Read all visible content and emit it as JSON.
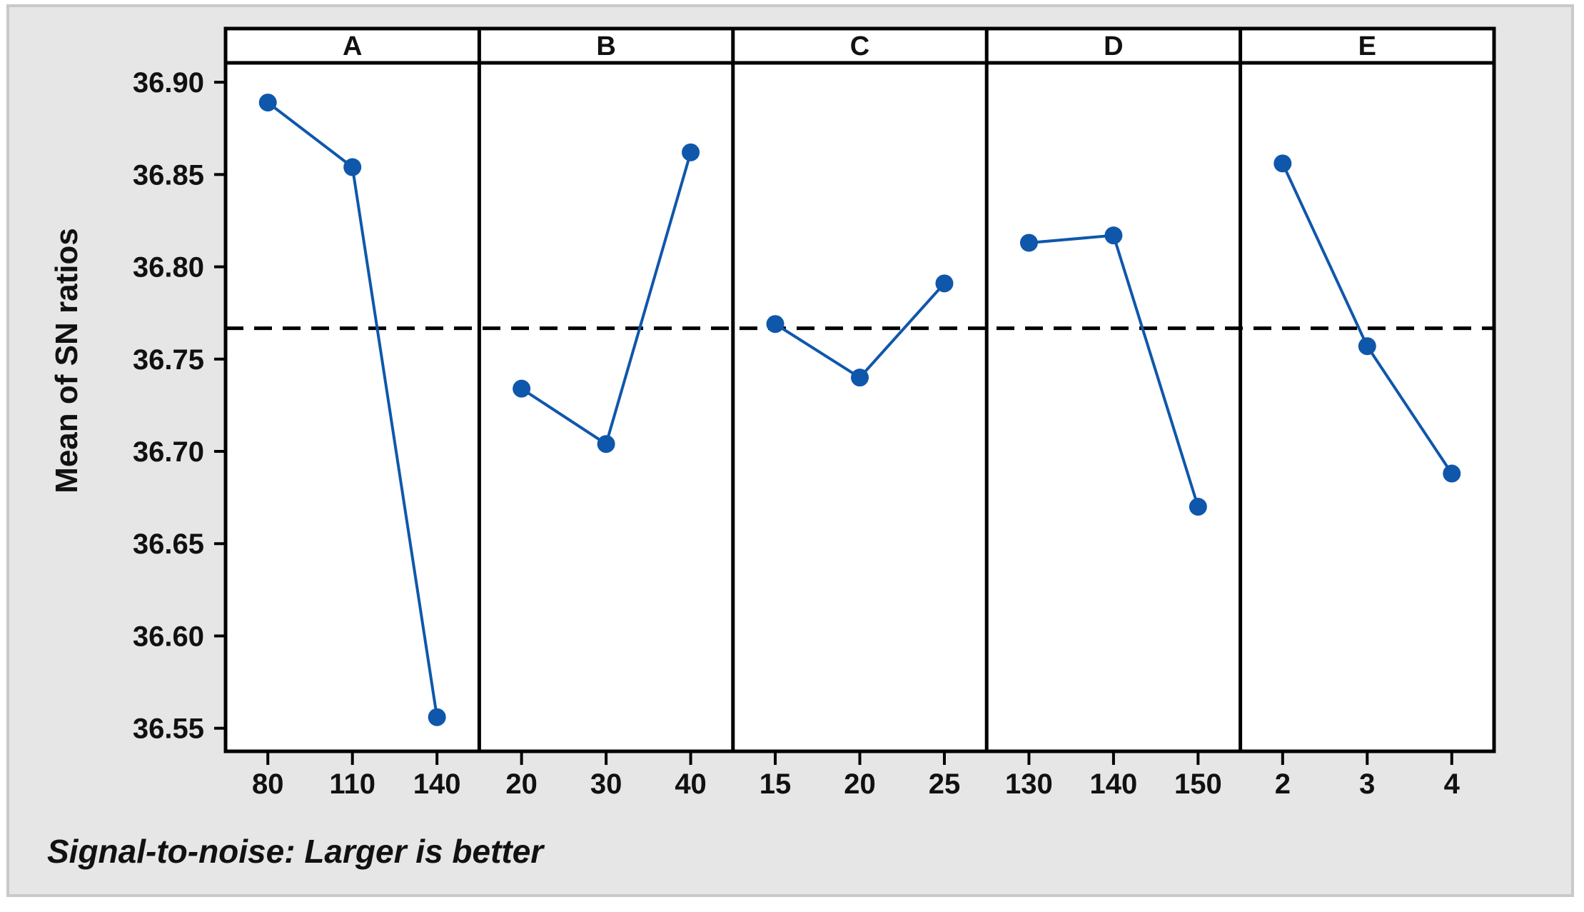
{
  "figure": {
    "canvas_background": "#e6e6e6",
    "canvas_border_color": "#c9c9c9",
    "panel_background": "#ffffff",
    "frame_color": "#000000"
  },
  "chart_data": {
    "type": "line",
    "subtype": "main-effects-plot",
    "title": "",
    "ylabel": "Mean of SN ratios",
    "footer": "Signal-to-noise: Larger is better",
    "point_color": "#0f57ab",
    "line_color": "#0f57ab",
    "reference_line": 36.7667,
    "reference_line_style": "dashed",
    "reference_line_color": "#000000",
    "grid": false,
    "legend": null,
    "ylim": [
      36.5375,
      36.9105
    ],
    "yticks": [
      {
        "value": 36.9,
        "label": "36.90"
      },
      {
        "value": 36.85,
        "label": "36.85"
      },
      {
        "value": 36.8,
        "label": "36.80"
      },
      {
        "value": 36.75,
        "label": "36.75"
      },
      {
        "value": 36.7,
        "label": "36.70"
      },
      {
        "value": 36.65,
        "label": "36.65"
      },
      {
        "value": 36.6,
        "label": "36.60"
      },
      {
        "value": 36.55,
        "label": "36.55"
      }
    ],
    "panels": [
      {
        "label": "A",
        "categories": [
          "80",
          "110",
          "140"
        ],
        "values": [
          36.889,
          36.854,
          36.556
        ]
      },
      {
        "label": "B",
        "categories": [
          "20",
          "30",
          "40"
        ],
        "values": [
          36.734,
          36.704,
          36.862
        ]
      },
      {
        "label": "C",
        "categories": [
          "15",
          "20",
          "25"
        ],
        "values": [
          36.769,
          36.74,
          36.791
        ]
      },
      {
        "label": "D",
        "categories": [
          "130",
          "140",
          "150"
        ],
        "values": [
          36.813,
          36.817,
          36.67
        ]
      },
      {
        "label": "E",
        "categories": [
          "2",
          "3",
          "4"
        ],
        "values": [
          36.856,
          36.757,
          36.688
        ]
      }
    ]
  }
}
